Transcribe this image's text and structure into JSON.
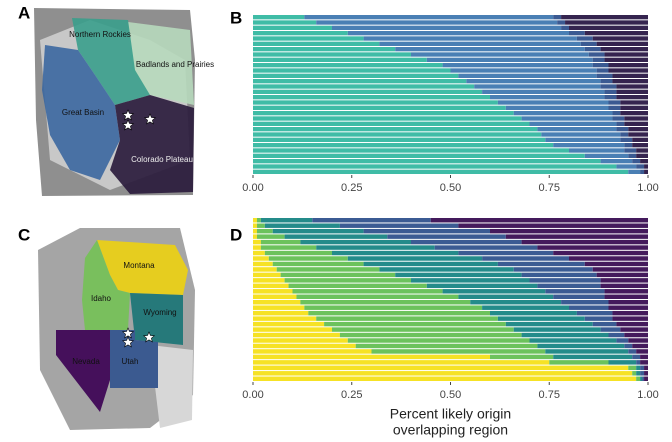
{
  "panel_labels": [
    "A",
    "B",
    "C",
    "D"
  ],
  "map_a": {
    "labels": [
      "Northern Rockies",
      "Badlands and Prairies",
      "Great Basin",
      "Colorado Plateau"
    ]
  },
  "map_c": {
    "labels": [
      "Montana",
      "Idaho",
      "Wyoming",
      "Nevada",
      "Utah"
    ]
  },
  "chart_data": [
    {
      "type": "bar",
      "orientation": "horizontal",
      "stacked": true,
      "xlim": [
        0,
        1
      ],
      "xticks": [
        {
          "value": 0,
          "label": "0.00"
        },
        {
          "value": 0.25,
          "label": "0.25"
        },
        {
          "value": 0.5,
          "label": "0.50"
        },
        {
          "value": 0.75,
          "label": "0.75"
        },
        {
          "value": 1,
          "label": "1.00"
        }
      ],
      "series": [
        {
          "color": "#3fbca6",
          "values": [
            0.13,
            0.16,
            0.2,
            0.24,
            0.28,
            0.32,
            0.36,
            0.4,
            0.44,
            0.48,
            0.5,
            0.52,
            0.54,
            0.56,
            0.58,
            0.6,
            0.62,
            0.64,
            0.66,
            0.68,
            0.7,
            0.72,
            0.73,
            0.74,
            0.76,
            0.8,
            0.84,
            0.88,
            0.92,
            0.95
          ]
        },
        {
          "color": "#4a7fb4",
          "values": [
            0.63,
            0.61,
            0.58,
            0.56,
            0.54,
            0.51,
            0.48,
            0.45,
            0.42,
            0.38,
            0.37,
            0.35,
            0.34,
            0.32,
            0.31,
            0.29,
            0.28,
            0.26,
            0.25,
            0.23,
            0.22,
            0.2,
            0.2,
            0.19,
            0.18,
            0.14,
            0.11,
            0.08,
            0.05,
            0.03
          ]
        },
        {
          "color": "#3b5a92",
          "values": [
            0.02,
            0.02,
            0.02,
            0.04,
            0.04,
            0.04,
            0.04,
            0.04,
            0.03,
            0.04,
            0.03,
            0.04,
            0.03,
            0.04,
            0.03,
            0.03,
            0.03,
            0.03,
            0.02,
            0.03,
            0.02,
            0.03,
            0.02,
            0.03,
            0.02,
            0.03,
            0.02,
            0.02,
            0.02,
            0.01
          ]
        },
        {
          "color": "#35244f",
          "values": [
            0.22,
            0.21,
            0.2,
            0.16,
            0.14,
            0.13,
            0.12,
            0.11,
            0.11,
            0.1,
            0.1,
            0.09,
            0.09,
            0.08,
            0.08,
            0.08,
            0.07,
            0.07,
            0.07,
            0.06,
            0.06,
            0.05,
            0.05,
            0.04,
            0.04,
            0.03,
            0.03,
            0.02,
            0.01,
            0.01
          ]
        }
      ]
    },
    {
      "type": "bar",
      "orientation": "horizontal",
      "stacked": true,
      "xlim": [
        0,
        1
      ],
      "xticks": [
        {
          "value": 0,
          "label": "0.00"
        },
        {
          "value": 0.25,
          "label": "0.25"
        },
        {
          "value": 0.5,
          "label": "0.50"
        },
        {
          "value": 0.75,
          "label": "0.75"
        },
        {
          "value": 1,
          "label": "1.00"
        }
      ],
      "xlabel": [
        "Percent likely origin",
        "overlapping region"
      ],
      "series": [
        {
          "color": "#f6e225",
          "values": [
            0.01,
            0.01,
            0.01,
            0.01,
            0.02,
            0.02,
            0.03,
            0.04,
            0.05,
            0.06,
            0.07,
            0.08,
            0.09,
            0.1,
            0.11,
            0.12,
            0.13,
            0.14,
            0.16,
            0.18,
            0.2,
            0.22,
            0.24,
            0.26,
            0.3,
            0.6,
            0.75,
            0.95,
            0.96,
            0.97
          ]
        },
        {
          "color": "#6cc25c",
          "values": [
            0.01,
            0.02,
            0.04,
            0.07,
            0.1,
            0.14,
            0.17,
            0.2,
            0.23,
            0.26,
            0.29,
            0.32,
            0.35,
            0.38,
            0.41,
            0.43,
            0.45,
            0.46,
            0.46,
            0.46,
            0.46,
            0.46,
            0.46,
            0.46,
            0.44,
            0.16,
            0.15,
            0.02,
            0.01,
            0.01
          ]
        },
        {
          "color": "#248b8a",
          "values": [
            0.13,
            0.19,
            0.23,
            0.26,
            0.28,
            0.3,
            0.32,
            0.34,
            0.34,
            0.34,
            0.32,
            0.3,
            0.28,
            0.26,
            0.24,
            0.23,
            0.22,
            0.22,
            0.22,
            0.22,
            0.22,
            0.22,
            0.22,
            0.22,
            0.21,
            0.2,
            0.07,
            0.01,
            0.01,
            0.005
          ]
        },
        {
          "color": "#3b5b93",
          "values": [
            0.3,
            0.3,
            0.32,
            0.3,
            0.28,
            0.26,
            0.24,
            0.22,
            0.22,
            0.2,
            0.19,
            0.18,
            0.16,
            0.15,
            0.13,
            0.12,
            0.1,
            0.09,
            0.07,
            0.06,
            0.05,
            0.04,
            0.03,
            0.02,
            0.02,
            0.02,
            0.01,
            0.01,
            0.01,
            0.005
          ]
        },
        {
          "color": "#441a5c",
          "values": [
            0.55,
            0.48,
            0.4,
            0.36,
            0.32,
            0.28,
            0.24,
            0.2,
            0.16,
            0.14,
            0.13,
            0.12,
            0.12,
            0.11,
            0.11,
            0.1,
            0.1,
            0.09,
            0.09,
            0.08,
            0.07,
            0.06,
            0.05,
            0.04,
            0.03,
            0.02,
            0.02,
            0.01,
            0.01,
            0.01
          ]
        }
      ]
    }
  ]
}
